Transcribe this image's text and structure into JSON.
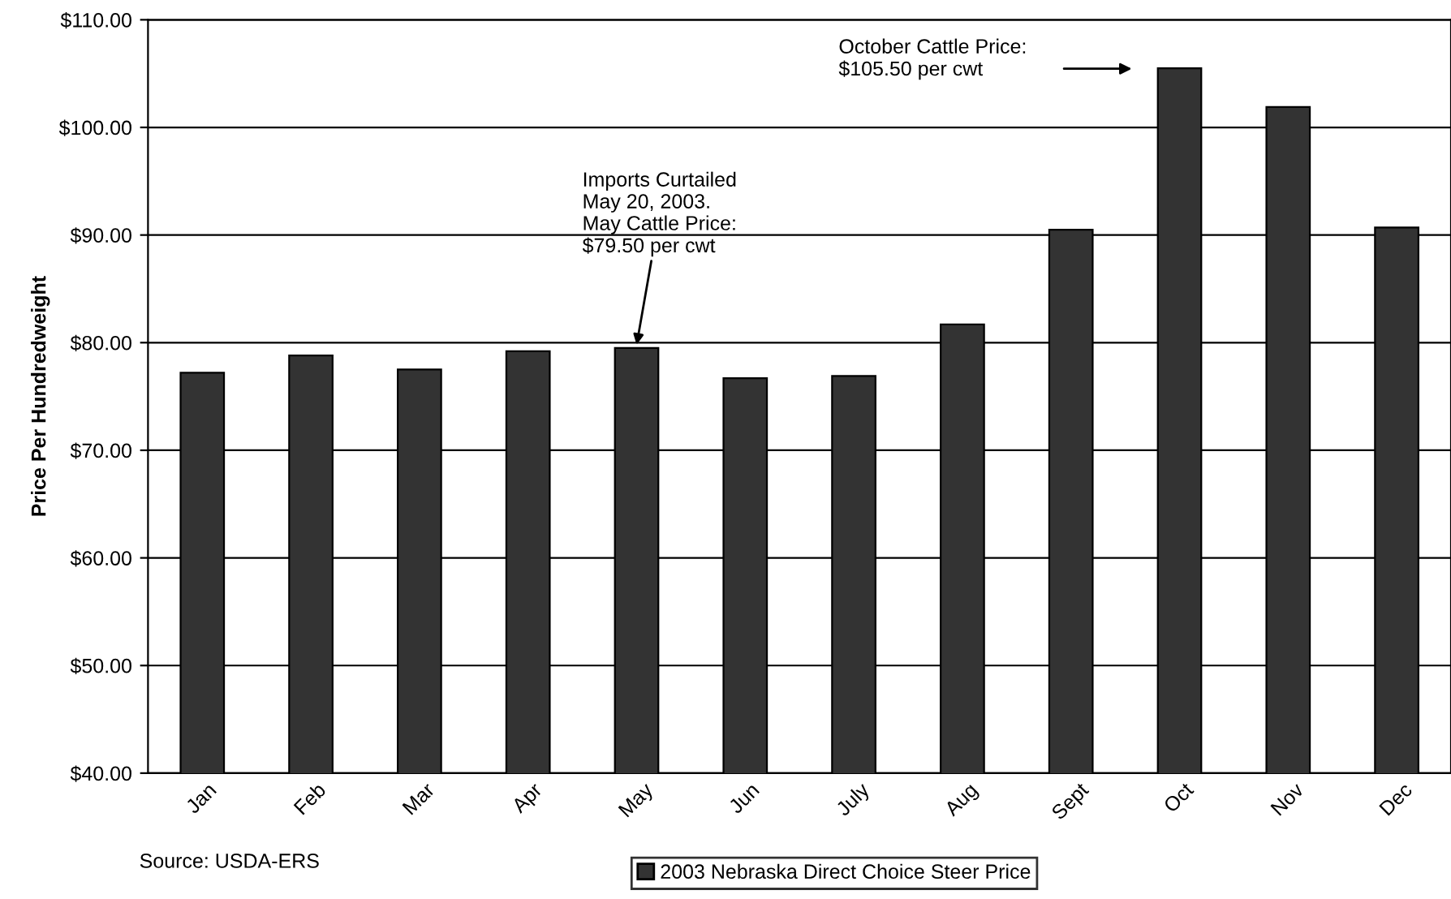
{
  "chart_data": {
    "type": "bar",
    "ylabel": "Price Per Hundredweight",
    "categories": [
      "Jan",
      "Feb",
      "Mar",
      "Apr",
      "May",
      "Jun",
      "July",
      "Aug",
      "Sept",
      "Oct",
      "Nov",
      "Dec"
    ],
    "series": [
      {
        "name": "2003 Nebraska Direct Choice Steer Price",
        "color": "#333333",
        "values": [
          77.2,
          78.8,
          77.5,
          79.2,
          79.5,
          76.7,
          76.9,
          81.7,
          90.5,
          105.5,
          101.9,
          90.7
        ]
      }
    ],
    "ylim": [
      40,
      110
    ],
    "yticks": [
      {
        "value": 40,
        "label": "$40.00"
      },
      {
        "value": 50,
        "label": "$50.00"
      },
      {
        "value": 60,
        "label": "$60.00"
      },
      {
        "value": 70,
        "label": "$70.00"
      },
      {
        "value": 80,
        "label": "$80.00"
      },
      {
        "value": 90,
        "label": "$90.00"
      },
      {
        "value": 100,
        "label": "$100.00"
      },
      {
        "value": 110,
        "label": "$110.00"
      }
    ],
    "grid": "y",
    "legend": "bottom",
    "annotations": [
      {
        "text": "Imports Curtailed\nMay 20, 2003.\nMay Cattle Price:\n$79.50 per cwt",
        "x": "May",
        "y": 79.5
      },
      "October Cattle Price:\n$105.50 per cwt",
      "Source: USDA-ERS"
    ]
  }
}
